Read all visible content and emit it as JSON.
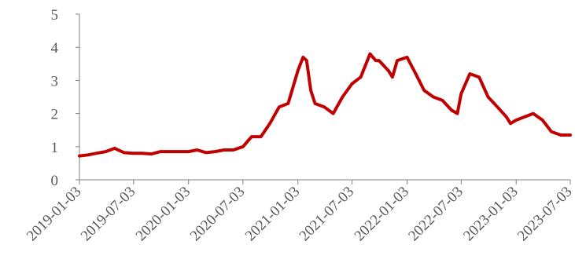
{
  "chart_data": {
    "type": "line",
    "title": "",
    "xlabel": "",
    "ylabel": "",
    "ylim": [
      0,
      5
    ],
    "y_ticks": [
      0,
      1,
      2,
      3,
      4,
      5
    ],
    "x_ticks": [
      "2019-01-03",
      "2019-07-03",
      "2020-01-03",
      "2020-07-03",
      "2021-01-03",
      "2021-07-03",
      "2022-01-03",
      "2022-07-03",
      "2023-01-03",
      "2023-07-03"
    ],
    "grid": false,
    "legend": "none",
    "series": [
      {
        "color": "#c00000",
        "x": [
          "2019-01-03",
          "2019-02-01",
          "2019-03-01",
          "2019-04-01",
          "2019-05-01",
          "2019-06-01",
          "2019-07-01",
          "2019-08-01",
          "2019-09-01",
          "2019-10-01",
          "2019-11-01",
          "2019-12-01",
          "2020-01-03",
          "2020-02-01",
          "2020-03-01",
          "2020-04-01",
          "2020-05-01",
          "2020-06-01",
          "2020-07-03",
          "2020-08-01",
          "2020-09-01",
          "2020-10-01",
          "2020-11-01",
          "2020-12-01",
          "2021-01-03",
          "2021-01-20",
          "2021-02-01",
          "2021-02-15",
          "2021-03-01",
          "2021-04-01",
          "2021-05-01",
          "2021-06-01",
          "2021-07-03",
          "2021-08-01",
          "2021-09-01",
          "2021-09-20",
          "2021-10-01",
          "2021-11-01",
          "2021-11-15",
          "2021-12-01",
          "2022-01-03",
          "2022-02-01",
          "2022-03-01",
          "2022-04-01",
          "2022-05-01",
          "2022-06-01",
          "2022-06-20",
          "2022-07-03",
          "2022-08-01",
          "2022-09-01",
          "2022-10-01",
          "2022-11-01",
          "2022-12-01",
          "2022-12-15",
          "2023-01-03",
          "2023-02-01",
          "2023-03-01",
          "2023-04-01",
          "2023-05-01",
          "2023-06-01",
          "2023-07-03"
        ],
        "y": [
          0.72,
          0.75,
          0.8,
          0.85,
          0.95,
          0.82,
          0.8,
          0.8,
          0.78,
          0.85,
          0.85,
          0.85,
          0.85,
          0.9,
          0.82,
          0.85,
          0.9,
          0.9,
          1.0,
          1.3,
          1.3,
          1.7,
          2.2,
          2.3,
          3.3,
          3.7,
          3.6,
          2.7,
          2.3,
          2.2,
          2.0,
          2.5,
          2.9,
          3.1,
          3.8,
          3.6,
          3.6,
          3.3,
          3.1,
          3.6,
          3.7,
          3.2,
          2.7,
          2.5,
          2.4,
          2.1,
          2.0,
          2.6,
          3.2,
          3.1,
          2.5,
          2.2,
          1.9,
          1.7,
          1.8,
          1.9,
          2.0,
          1.8,
          1.45,
          1.35,
          1.35
        ]
      }
    ]
  }
}
